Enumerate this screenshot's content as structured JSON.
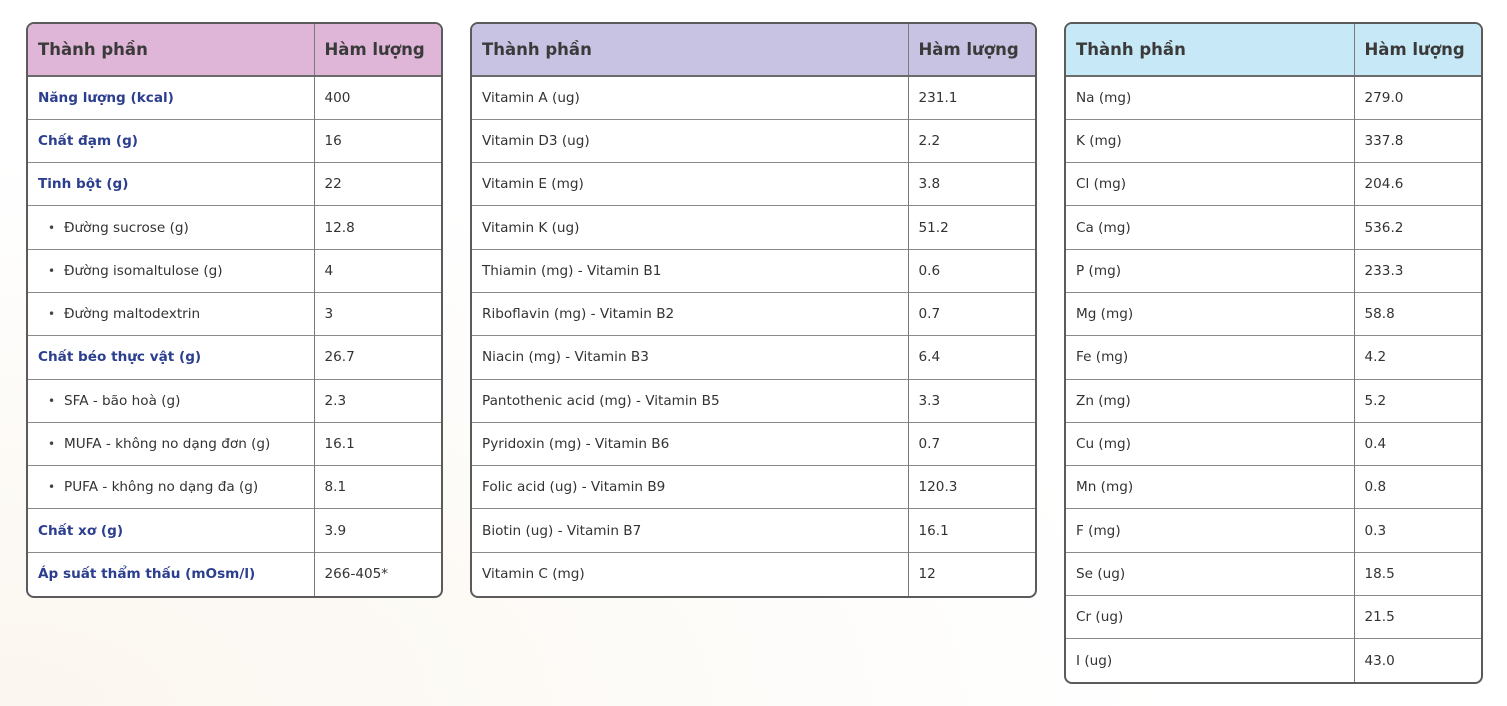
{
  "tables": [
    {
      "headers": [
        "Thành phần",
        "Hàm lượng"
      ],
      "rows": [
        {
          "name": "Năng lượng (kcal)",
          "value": "400",
          "type": "cat"
        },
        {
          "name": "Chất đạm (g)",
          "value": "16",
          "type": "cat"
        },
        {
          "name": "Tinh bột (g)",
          "value": "22",
          "type": "cat"
        },
        {
          "name": "Đường sucrose (g)",
          "value": "12.8",
          "type": "sub"
        },
        {
          "name": "Đường isomaltulose (g)",
          "value": "4",
          "type": "sub"
        },
        {
          "name": "Đường maltodextrin",
          "value": "3",
          "type": "sub"
        },
        {
          "name": "Chất béo thực vật (g)",
          "value": "26.7",
          "type": "cat"
        },
        {
          "name": "SFA - bão hoà (g)",
          "value": "2.3",
          "type": "sub"
        },
        {
          "name": "MUFA - không no dạng đơn (g)",
          "value": "16.1",
          "type": "sub"
        },
        {
          "name": "PUFA - không no dạng đa (g)",
          "value": "8.1",
          "type": "sub"
        },
        {
          "name": "Chất xơ (g)",
          "value": "3.9",
          "type": "cat"
        },
        {
          "name": "Áp suất thẩm thấu (mOsm/l)",
          "value": "266-405*",
          "type": "cat"
        }
      ]
    },
    {
      "headers": [
        "Thành phần",
        "Hàm lượng"
      ],
      "rows": [
        {
          "name": "Vitamin A (ug)",
          "value": "231.1",
          "type": "plain"
        },
        {
          "name": "Vitamin D3 (ug)",
          "value": "2.2",
          "type": "plain"
        },
        {
          "name": "Vitamin E (mg)",
          "value": "3.8",
          "type": "plain"
        },
        {
          "name": "Vitamin K (ug)",
          "value": "51.2",
          "type": "plain"
        },
        {
          "name": "Thiamin (mg) - Vitamin B1",
          "value": "0.6",
          "type": "plain"
        },
        {
          "name": "Riboflavin (mg) - Vitamin B2",
          "value": "0.7",
          "type": "plain"
        },
        {
          "name": "Niacin (mg) - Vitamin B3",
          "value": "6.4",
          "type": "plain"
        },
        {
          "name": "Pantothenic acid (mg) - Vitamin B5",
          "value": "3.3",
          "type": "plain"
        },
        {
          "name": "Pyridoxin (mg) - Vitamin B6",
          "value": "0.7",
          "type": "plain"
        },
        {
          "name": "Folic acid (ug) - Vitamin B9",
          "value": "120.3",
          "type": "plain"
        },
        {
          "name": "Biotin (ug) - Vitamin B7",
          "value": "16.1",
          "type": "plain"
        },
        {
          "name": "Vitamin C (mg)",
          "value": "12",
          "type": "plain"
        }
      ]
    },
    {
      "headers": [
        "Thành phần",
        "Hàm lượng"
      ],
      "rows": [
        {
          "name": "Na (mg)",
          "value": "279.0",
          "type": "plain"
        },
        {
          "name": "K (mg)",
          "value": "337.8",
          "type": "plain"
        },
        {
          "name": "Cl (mg)",
          "value": "204.6",
          "type": "plain"
        },
        {
          "name": "Ca (mg)",
          "value": "536.2",
          "type": "plain"
        },
        {
          "name": "P (mg)",
          "value": "233.3",
          "type": "plain"
        },
        {
          "name": "Mg (mg)",
          "value": "58.8",
          "type": "plain"
        },
        {
          "name": "Fe (mg)",
          "value": "4.2",
          "type": "plain"
        },
        {
          "name": "Zn (mg)",
          "value": "5.2",
          "type": "plain"
        },
        {
          "name": "Cu (mg)",
          "value": "0.4",
          "type": "plain"
        },
        {
          "name": "Mn (mg)",
          "value": "0.8",
          "type": "plain"
        },
        {
          "name": "F (mg)",
          "value": "0.3",
          "type": "plain"
        },
        {
          "name": "Se (ug)",
          "value": "18.5",
          "type": "plain"
        },
        {
          "name": "Cr (ug)",
          "value": "21.5",
          "type": "plain"
        },
        {
          "name": "I (ug)",
          "value": "43.0",
          "type": "plain"
        }
      ]
    }
  ],
  "colors": {
    "header_macros": "#dfb6d7",
    "header_vitamins": "#c8c3e2",
    "header_minerals": "#c7e8f6",
    "category_text": "#2c3f8f"
  }
}
